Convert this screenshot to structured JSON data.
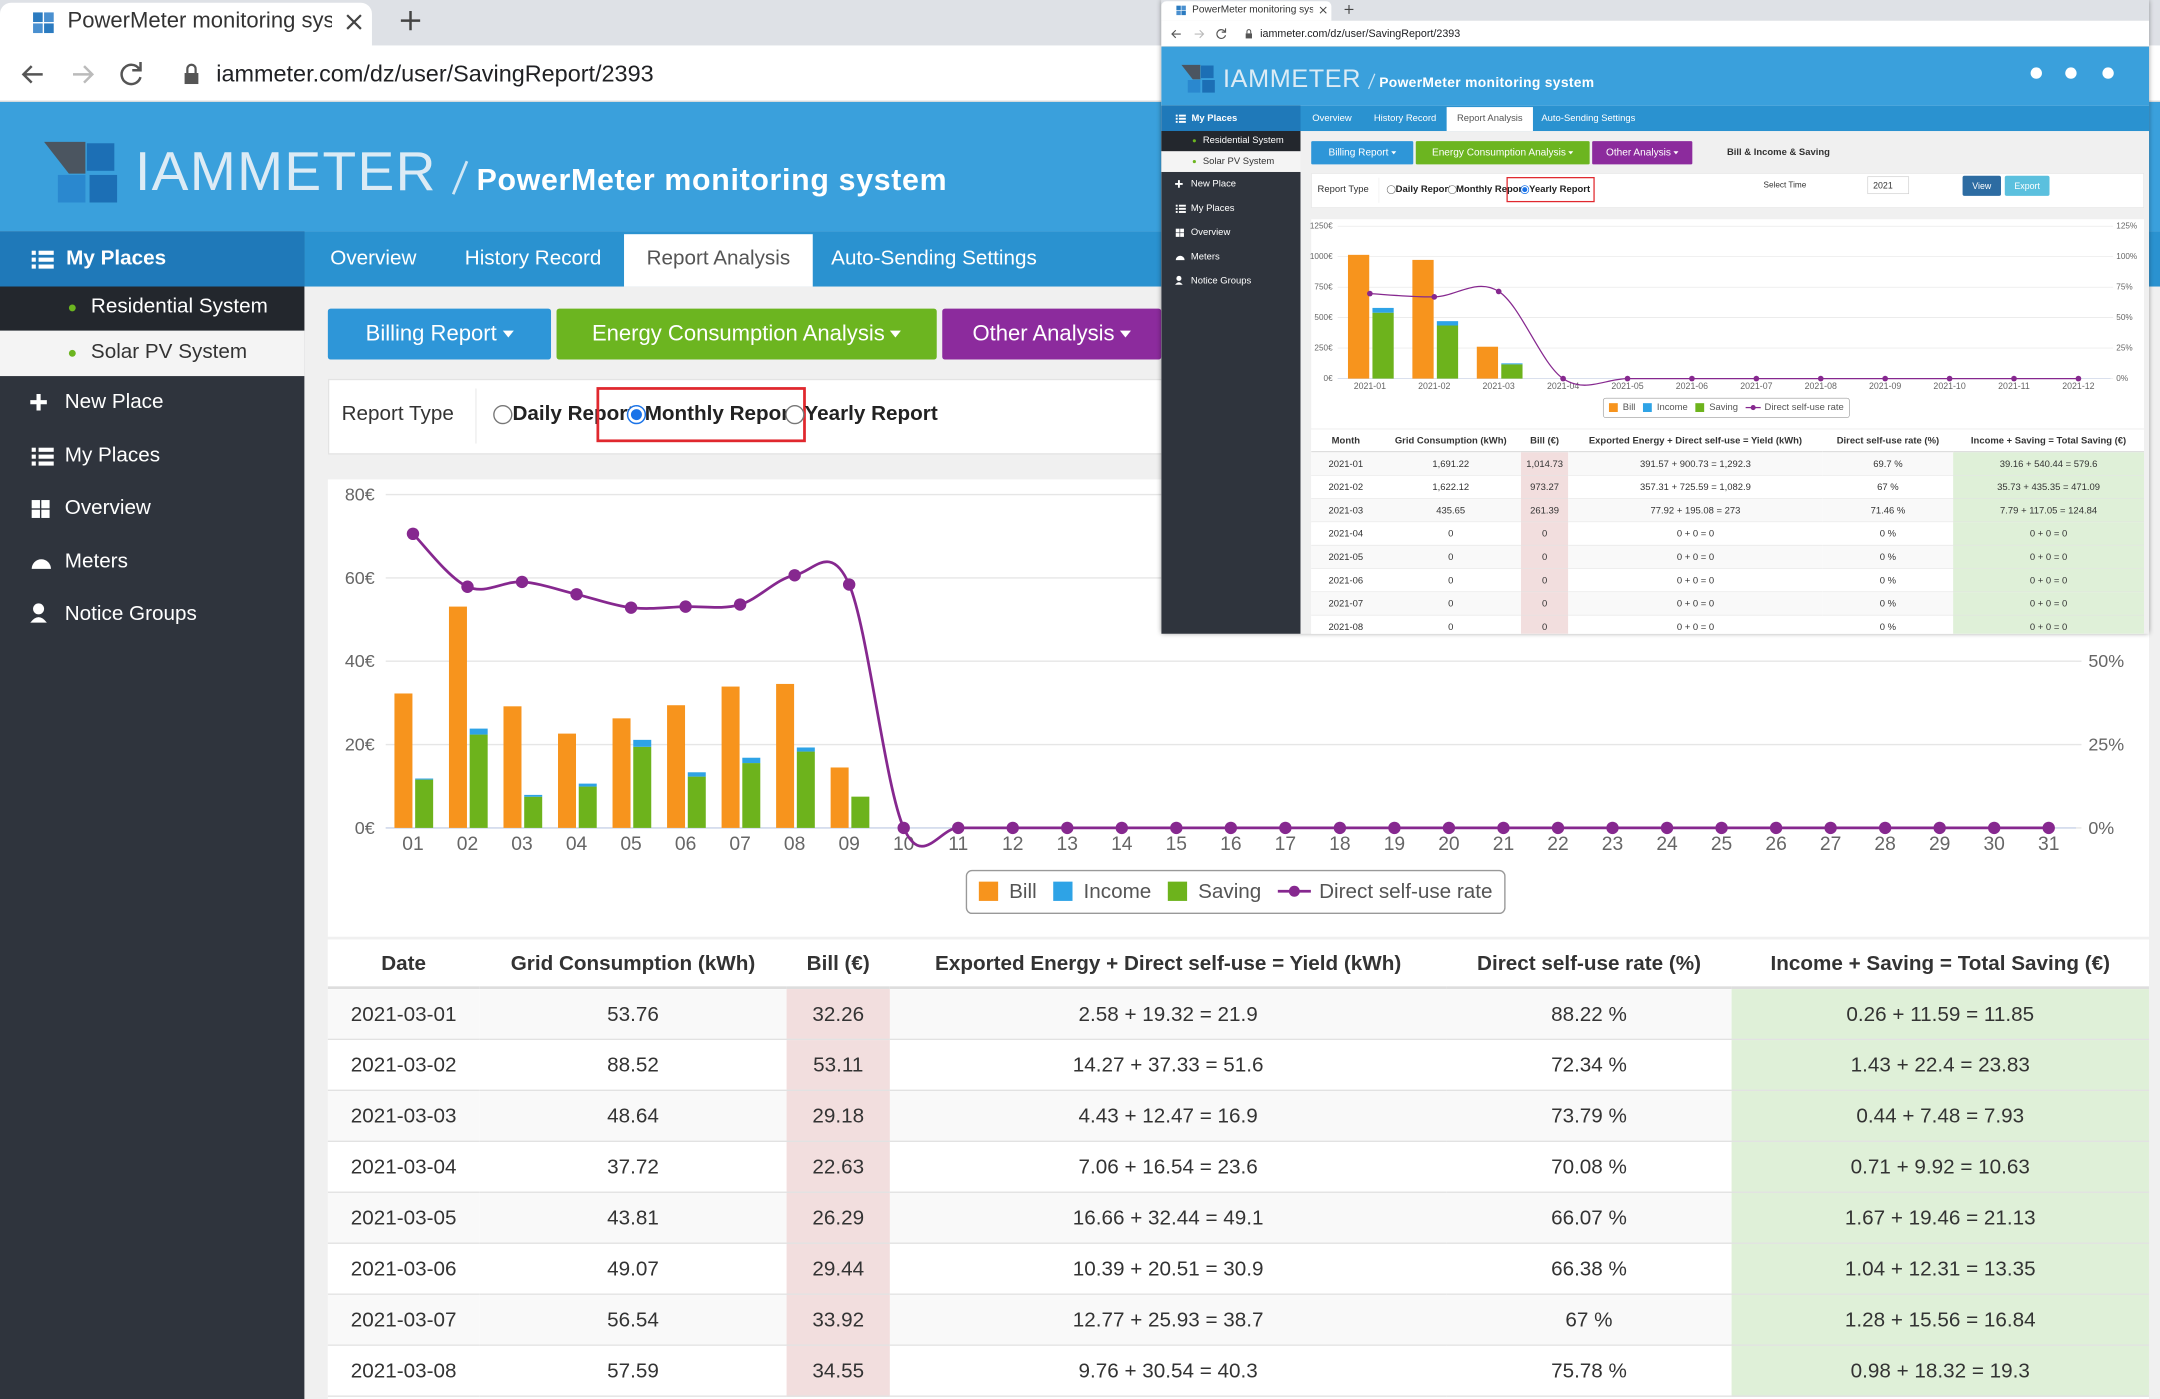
{
  "windows": [
    {
      "browser": {
        "tab_title": "PowerMeter monitoring system",
        "url": "iammeter.com/dz/user/SavingReport/2393"
      },
      "header": {
        "logo": "IAMMETER",
        "title": "PowerMeter monitoring system"
      },
      "sidebar": {
        "my_places": "My Places",
        "places": [
          "Residential System",
          "Solar PV System"
        ],
        "menu": [
          "New Place",
          "My Places",
          "Overview",
          "Meters",
          "Notice Groups"
        ]
      },
      "tabs": [
        {
          "label": "Overview",
          "active": false
        },
        {
          "label": "History Record",
          "active": false
        },
        {
          "label": "Report Analysis",
          "active": true
        },
        {
          "label": "Auto-Sending Settings",
          "active": false
        }
      ],
      "menus": [
        "Billing Report",
        "Energy Consumption Analysis",
        "Other Analysis"
      ],
      "report_type": {
        "label": "Report Type",
        "options": [
          {
            "label": "Daily Report",
            "checked": false
          },
          {
            "label": "Monthly Report",
            "checked": true
          },
          {
            "label": "Yearly Report",
            "checked": false
          }
        ]
      },
      "chart": {
        "type": "bar",
        "categories": [
          "01",
          "02",
          "03",
          "04",
          "05",
          "06",
          "07",
          "08",
          "09",
          "10",
          "11",
          "12",
          "13",
          "14",
          "15",
          "16",
          "17",
          "18",
          "19",
          "20",
          "21",
          "22",
          "23",
          "24",
          "25",
          "26",
          "27",
          "28",
          "29",
          "30",
          "31"
        ],
        "series": [
          {
            "name": "Bill",
            "color": "#f7941d",
            "values": [
              32.26,
              53.11,
              29.18,
              22.63,
              26.29,
              29.44,
              33.92,
              34.55,
              14.5,
              0,
              0,
              0,
              0,
              0,
              0,
              0,
              0,
              0,
              0,
              0,
              0,
              0,
              0,
              0,
              0,
              0,
              0,
              0,
              0,
              0,
              0
            ]
          },
          {
            "name": "Income",
            "color": "#2ea3e6",
            "stacked": true,
            "values": [
              0.26,
              1.43,
              0.44,
              0.71,
              1.67,
              1.04,
              1.28,
              0.98,
              0,
              0,
              0,
              0,
              0,
              0,
              0,
              0,
              0,
              0,
              0,
              0,
              0,
              0,
              0,
              0,
              0,
              0,
              0,
              0,
              0,
              0,
              0
            ]
          },
          {
            "name": "Saving",
            "color": "#6db31c",
            "stacked": true,
            "values": [
              11.59,
              22.4,
              7.48,
              9.92,
              19.46,
              12.31,
              15.56,
              18.32,
              7.5,
              0,
              0,
              0,
              0,
              0,
              0,
              0,
              0,
              0,
              0,
              0,
              0,
              0,
              0,
              0,
              0,
              0,
              0,
              0,
              0,
              0,
              0
            ]
          },
          {
            "name": "Direct self-use rate",
            "color": "#86288f",
            "type": "line",
            "axis": "y2",
            "values": [
              88.22,
              72.34,
              73.79,
              70.08,
              66.07,
              66.38,
              67,
              75.78,
              73,
              0,
              0,
              0,
              0,
              0,
              0,
              0,
              0,
              0,
              0,
              0,
              0,
              0,
              0,
              0,
              0,
              0,
              0,
              0,
              0,
              0,
              0
            ]
          }
        ],
        "ylim": [
          0,
          80
        ],
        "yticks": [
          {
            "value": 0,
            "label": "0€"
          },
          {
            "value": 20,
            "label": "20€"
          },
          {
            "value": 40,
            "label": "40€"
          },
          {
            "value": 60,
            "label": "60€"
          },
          {
            "value": 80,
            "label": "80€"
          }
        ],
        "y2lim": [
          0,
          100
        ],
        "y2ticks": [
          {
            "value": 0,
            "label": "0%"
          },
          {
            "value": 25,
            "label": "25%"
          },
          {
            "value": 50,
            "label": "50%"
          }
        ],
        "grid": true,
        "legend": "bottom"
      },
      "table": {
        "columns": [
          "Date",
          "Grid Consumption (kWh)",
          "Bill (€)",
          "Exported Energy + Direct self-use = Yield (kWh)",
          "Direct self-use rate (%)",
          "Income + Saving = Total Saving (€)"
        ],
        "rows": [
          [
            "2021-03-01",
            "53.76",
            "32.26",
            "2.58 + 19.32 = 21.9",
            "88.22 %",
            "0.26 + 11.59 = 11.85"
          ],
          [
            "2021-03-02",
            "88.52",
            "53.11",
            "14.27 + 37.33 = 51.6",
            "72.34 %",
            "1.43 + 22.4 = 23.83"
          ],
          [
            "2021-03-03",
            "48.64",
            "29.18",
            "4.43 + 12.47 = 16.9",
            "73.79 %",
            "0.44 + 7.48 = 7.93"
          ],
          [
            "2021-03-04",
            "37.72",
            "22.63",
            "7.06 + 16.54 = 23.6",
            "70.08 %",
            "0.71 + 9.92 = 10.63"
          ],
          [
            "2021-03-05",
            "43.81",
            "26.29",
            "16.66 + 32.44 = 49.1",
            "66.07 %",
            "1.67 + 19.46 = 21.13"
          ],
          [
            "2021-03-06",
            "49.07",
            "29.44",
            "10.39 + 20.51 = 30.9",
            "66.38 %",
            "1.04 + 12.31 = 13.35"
          ],
          [
            "2021-03-07",
            "56.54",
            "33.92",
            "12.77 + 25.93 = 38.7",
            "67 %",
            "1.28 + 15.56 = 16.84"
          ],
          [
            "2021-03-08",
            "57.59",
            "34.55",
            "9.76 + 30.54 = 40.3",
            "75.78 %",
            "0.98 + 18.32 = 19.3"
          ]
        ]
      }
    },
    {
      "browser": {
        "tab_title": "PowerMeter monitoring system",
        "url": "iammeter.com/dz/user/SavingReport/2393"
      },
      "header": {
        "logo": "IAMMETER",
        "title": "PowerMeter monitoring system"
      },
      "sidebar": {
        "my_places": "My Places",
        "places": [
          "Residential System",
          "Solar PV System"
        ],
        "menu": [
          "New Place",
          "My Places",
          "Overview",
          "Meters",
          "Notice Groups"
        ]
      },
      "tabs": [
        {
          "label": "Overview",
          "active": false
        },
        {
          "label": "History Record",
          "active": false
        },
        {
          "label": "Report Analysis",
          "active": true
        },
        {
          "label": "Auto-Sending Settings",
          "active": false
        }
      ],
      "menus": [
        "Billing Report",
        "Energy Consumption Analysis",
        "Other Analysis"
      ],
      "report_title": "Bill & Income & Saving",
      "report_type": {
        "label": "Report Type",
        "options": [
          {
            "label": "Daily Report",
            "checked": false
          },
          {
            "label": "Monthly Report",
            "checked": false
          },
          {
            "label": "Yearly Report",
            "checked": true
          }
        ]
      },
      "select_time": {
        "label": "Select Time",
        "value": "2021"
      },
      "buttons": [
        "View",
        "Export"
      ],
      "chart": {
        "type": "bar",
        "categories": [
          "2021-01",
          "2021-02",
          "2021-03",
          "2021-04",
          "2021-05",
          "2021-06",
          "2021-07",
          "2021-08",
          "2021-09",
          "2021-10",
          "2021-11",
          "2021-12"
        ],
        "series": [
          {
            "name": "Bill",
            "color": "#f7941d",
            "values": [
              1014.73,
              973.27,
              261.39,
              0,
              0,
              0,
              0,
              0,
              0,
              0,
              0,
              0
            ]
          },
          {
            "name": "Income",
            "color": "#2ea3e6",
            "stacked": true,
            "values": [
              39.16,
              35.73,
              7.79,
              0,
              0,
              0,
              0,
              0,
              0,
              0,
              0,
              0
            ]
          },
          {
            "name": "Saving",
            "color": "#6db31c",
            "stacked": true,
            "values": [
              540.44,
              435.35,
              117.05,
              0,
              0,
              0,
              0,
              0,
              0,
              0,
              0,
              0
            ]
          },
          {
            "name": "Direct self-use rate",
            "color": "#86288f",
            "type": "line",
            "axis": "y2",
            "values": [
              69.7,
              67,
              71.46,
              0,
              0,
              0,
              0,
              0,
              0,
              0,
              0,
              0
            ]
          }
        ],
        "ylim": [
          0,
          1250
        ],
        "yticks": [
          {
            "value": 0,
            "label": "0€"
          },
          {
            "value": 250,
            "label": "250€"
          },
          {
            "value": 500,
            "label": "500€"
          },
          {
            "value": 750,
            "label": "750€"
          },
          {
            "value": 1000,
            "label": "1000€"
          },
          {
            "value": 1250,
            "label": "1250€"
          }
        ],
        "y2lim": [
          0,
          125
        ],
        "y2ticks": [
          {
            "value": 0,
            "label": "0%"
          },
          {
            "value": 25,
            "label": "25%"
          },
          {
            "value": 50,
            "label": "50%"
          },
          {
            "value": 75,
            "label": "75%"
          },
          {
            "value": 100,
            "label": "100%"
          },
          {
            "value": 125,
            "label": "125%"
          }
        ],
        "grid": true,
        "legend": "bottom"
      },
      "table": {
        "columns": [
          "Month",
          "Grid Consumption (kWh)",
          "Bill (€)",
          "Exported Energy + Direct self-use = Yield (kWh)",
          "Direct self-use rate (%)",
          "Income + Saving = Total Saving (€)"
        ],
        "rows": [
          [
            "2021-01",
            "1,691.22",
            "1,014.73",
            "391.57 + 900.73 = 1,292.3",
            "69.7 %",
            "39.16 + 540.44 = 579.6"
          ],
          [
            "2021-02",
            "1,622.12",
            "973.27",
            "357.31 + 725.59 = 1,082.9",
            "67 %",
            "35.73 + 435.35 = 471.09"
          ],
          [
            "2021-03",
            "435.65",
            "261.39",
            "77.92 + 195.08 = 273",
            "71.46 %",
            "7.79 + 117.05 = 124.84"
          ],
          [
            "2021-04",
            "0",
            "0",
            "0 + 0 = 0",
            "0 %",
            "0 + 0 = 0"
          ],
          [
            "2021-05",
            "0",
            "0",
            "0 + 0 = 0",
            "0 %",
            "0 + 0 = 0"
          ],
          [
            "2021-06",
            "0",
            "0",
            "0 + 0 = 0",
            "0 %",
            "0 + 0 = 0"
          ],
          [
            "2021-07",
            "0",
            "0",
            "0 + 0 = 0",
            "0 %",
            "0 + 0 = 0"
          ],
          [
            "2021-08",
            "0",
            "0",
            "0 + 0 = 0",
            "0 %",
            "0 + 0 = 0"
          ]
        ]
      }
    }
  ]
}
